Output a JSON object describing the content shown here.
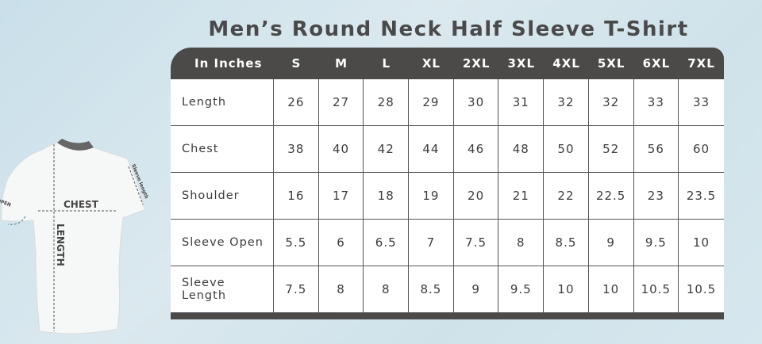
{
  "title": "Men’s Round Neck Half Sleeve T-Shirt",
  "illustration": {
    "chest": "CHEST",
    "length": "LENGTH",
    "sleeve_open": "SLEEVE OPEN",
    "sleeve_length": "Sleeve length"
  },
  "table": {
    "corner": "In Inches",
    "sizes": [
      "S",
      "M",
      "L",
      "XL",
      "2XL",
      "3XL",
      "4XL",
      "5XL",
      "6XL",
      "7XL"
    ],
    "rows": [
      {
        "label": "Length",
        "values": [
          "26",
          "27",
          "28",
          "29",
          "30",
          "31",
          "32",
          "32",
          "33",
          "33"
        ]
      },
      {
        "label": "Chest",
        "values": [
          "38",
          "40",
          "42",
          "44",
          "46",
          "48",
          "50",
          "52",
          "56",
          "60"
        ]
      },
      {
        "label": "Shoulder",
        "values": [
          "16",
          "17",
          "18",
          "19",
          "20",
          "21",
          "22",
          "22.5",
          "23",
          "23.5"
        ]
      },
      {
        "label": "Sleeve Open",
        "values": [
          "5.5",
          "6",
          "6.5",
          "7",
          "7.5",
          "8",
          "8.5",
          "9",
          "9.5",
          "10"
        ]
      },
      {
        "label": "Sleeve Length",
        "values": [
          "7.5",
          "8",
          "8",
          "8.5",
          "9",
          "9.5",
          "10",
          "10",
          "10.5",
          "10.5"
        ]
      }
    ]
  },
  "colors": {
    "header": "#4b4a49",
    "text": "#3c3c3c",
    "background": "#cfe2ea"
  }
}
